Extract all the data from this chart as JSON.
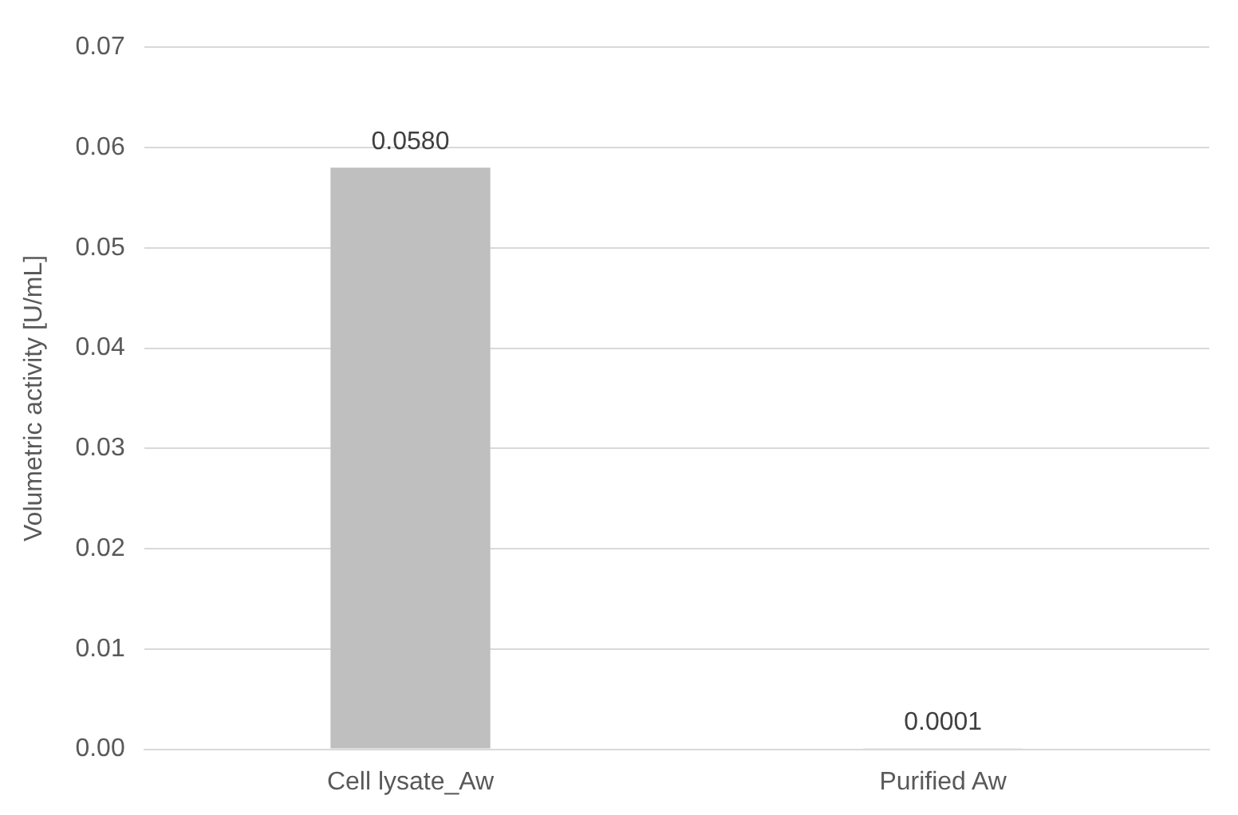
{
  "chart_data": {
    "type": "bar",
    "ylabel": "Volumetric activity [U/mL]",
    "categories": [
      "Cell lysate_Aw",
      "Purified Aw"
    ],
    "values": [
      0.058,
      0.0001
    ],
    "value_labels": [
      "0.0580",
      "0.0001"
    ],
    "color": "#bfbfbf",
    "ylim": [
      0,
      0.07
    ],
    "yticks": [
      {
        "value": 0,
        "label": "0.00"
      },
      {
        "value": 0.01,
        "label": "0.01"
      },
      {
        "value": 0.02,
        "label": "0.02"
      },
      {
        "value": 0.03,
        "label": "0.03"
      },
      {
        "value": 0.04,
        "label": "0.04"
      },
      {
        "value": 0.05,
        "label": "0.05"
      },
      {
        "value": 0.06,
        "label": "0.06"
      },
      {
        "value": 0.07,
        "label": "0.07"
      }
    ],
    "grid": "y",
    "legend": false
  }
}
